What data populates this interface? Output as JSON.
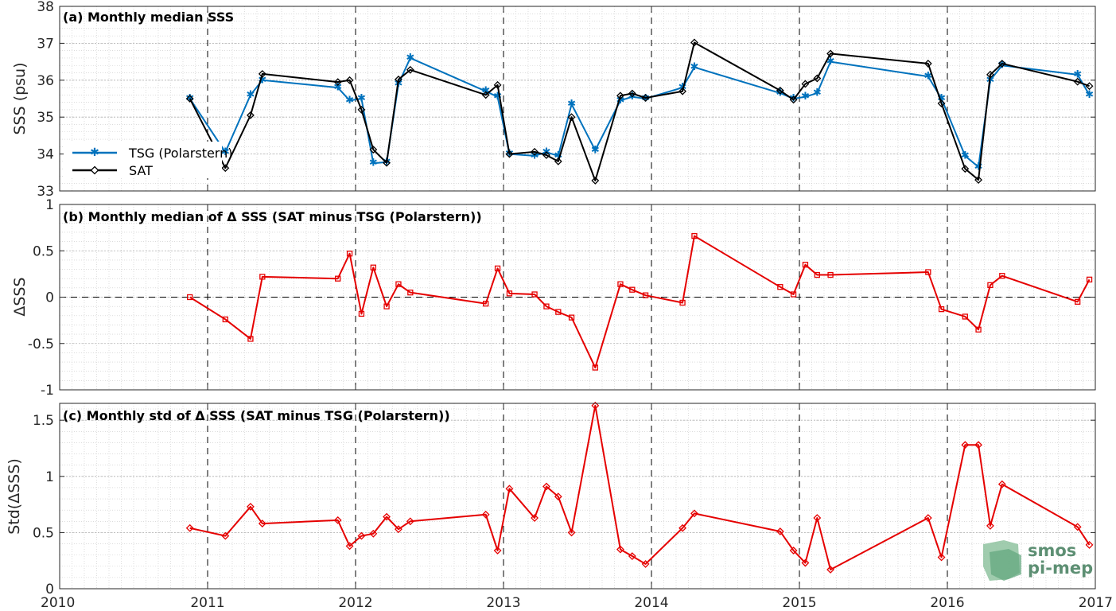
{
  "colors": {
    "tsg": "#0072bd",
    "sat": "#000000",
    "delta": "#e50000",
    "grid": "#c8c8c8",
    "axis": "#262626"
  },
  "logo": {
    "line1": "smos",
    "line2": "pi-mep"
  },
  "chart_data": [
    {
      "type": "line",
      "title": "(a) Monthly median SSS",
      "xlabel": "",
      "ylabel": "SSS (psu)",
      "xlim": [
        2010,
        2017
      ],
      "ylim": [
        33,
        38
      ],
      "xticks": [
        "2010",
        "2011",
        "2012",
        "2013",
        "2014",
        "2015",
        "2016",
        "2017"
      ],
      "yticks": [
        "33",
        "34",
        "35",
        "36",
        "37",
        "38"
      ],
      "grid": "on",
      "legend": "left",
      "series": [
        {
          "name": "TSG (Polarstern)",
          "marker": "star",
          "x": [
            2010.88,
            2011.12,
            2011.29,
            2011.37,
            2011.88,
            2011.96,
            2012.04,
            2012.12,
            2012.21,
            2012.29,
            2012.37,
            2012.88,
            2012.96,
            2013.04,
            2013.21,
            2013.29,
            2013.37,
            2013.46,
            2013.62,
            2013.79,
            2013.87,
            2013.96,
            2014.21,
            2014.29,
            2014.87,
            2014.96,
            2015.04,
            2015.12,
            2015.21,
            2015.87,
            2015.96,
            2016.12,
            2016.21,
            2016.29,
            2016.37,
            2016.88,
            2016.96
          ],
          "y": [
            35.5,
            34.05,
            35.6,
            36.0,
            35.8,
            35.45,
            35.5,
            33.75,
            33.78,
            35.9,
            36.6,
            35.7,
            35.55,
            34.0,
            33.95,
            34.05,
            33.95,
            35.35,
            34.1,
            35.45,
            35.55,
            35.5,
            35.8,
            36.35,
            35.65,
            35.5,
            35.55,
            35.65,
            36.5,
            36.1,
            35.5,
            33.95,
            33.65,
            36.0,
            36.4,
            36.15,
            35.6
          ]
        },
        {
          "name": "SAT",
          "marker": "diamond",
          "x": [
            2010.88,
            2011.12,
            2011.29,
            2011.37,
            2011.88,
            2011.96,
            2012.04,
            2012.12,
            2012.21,
            2012.29,
            2012.37,
            2012.88,
            2012.96,
            2013.04,
            2013.21,
            2013.29,
            2013.37,
            2013.46,
            2013.62,
            2013.79,
            2013.87,
            2013.96,
            2014.21,
            2014.29,
            2014.87,
            2014.96,
            2015.04,
            2015.12,
            2015.21,
            2015.87,
            2015.96,
            2016.12,
            2016.21,
            2016.29,
            2016.37,
            2016.88,
            2016.96
          ],
          "y": [
            35.5,
            33.62,
            35.05,
            36.17,
            35.95,
            36.0,
            35.2,
            34.12,
            33.76,
            36.02,
            36.28,
            35.6,
            35.87,
            34.0,
            34.06,
            33.97,
            33.8,
            35.0,
            33.28,
            35.58,
            35.64,
            35.52,
            35.7,
            37.02,
            35.72,
            35.47,
            35.9,
            36.05,
            36.72,
            36.45,
            35.37,
            33.6,
            33.3,
            36.15,
            36.45,
            35.96,
            35.84
          ]
        }
      ]
    },
    {
      "type": "line",
      "title": "(b) Monthly median of Δ SSS (SAT minus TSG (Polarstern))",
      "xlabel": "",
      "ylabel": "ΔSSS",
      "xlim": [
        2010,
        2017
      ],
      "ylim": [
        -1,
        1
      ],
      "xticks": [
        "2010",
        "2011",
        "2012",
        "2013",
        "2014",
        "2015",
        "2016",
        "2017"
      ],
      "yticks": [
        "-1",
        "-0.5",
        "0",
        "0.5",
        "1"
      ],
      "grid": "on",
      "zero_line": true,
      "series": [
        {
          "marker": "square",
          "x": [
            2010.88,
            2011.12,
            2011.29,
            2011.37,
            2011.88,
            2011.96,
            2012.04,
            2012.12,
            2012.21,
            2012.29,
            2012.37,
            2012.88,
            2012.96,
            2013.04,
            2013.21,
            2013.29,
            2013.37,
            2013.46,
            2013.62,
            2013.79,
            2013.87,
            2013.96,
            2014.21,
            2014.29,
            2014.87,
            2014.96,
            2015.04,
            2015.12,
            2015.21,
            2015.87,
            2015.96,
            2016.12,
            2016.21,
            2016.29,
            2016.37,
            2016.88,
            2016.96
          ],
          "y": [
            0.0,
            -0.24,
            -0.45,
            0.22,
            0.2,
            0.47,
            -0.18,
            0.32,
            -0.1,
            0.14,
            0.05,
            -0.07,
            0.31,
            0.04,
            0.03,
            -0.1,
            -0.16,
            -0.22,
            -0.76,
            0.14,
            0.08,
            0.02,
            -0.06,
            0.66,
            0.11,
            0.03,
            0.35,
            0.24,
            0.24,
            0.27,
            -0.13,
            -0.21,
            -0.35,
            0.13,
            0.23,
            -0.05,
            0.19
          ]
        }
      ]
    },
    {
      "type": "line",
      "title": "(c) Monthly std of Δ SSS (SAT minus TSG (Polarstern))",
      "xlabel": "",
      "ylabel": "Std(ΔSSS)",
      "xlim": [
        2010,
        2017
      ],
      "ylim": [
        0,
        1.65
      ],
      "xticks": [
        "2010",
        "2011",
        "2012",
        "2013",
        "2014",
        "2015",
        "2016",
        "2017"
      ],
      "yticks": [
        "0",
        "0.5",
        "1",
        "1.5"
      ],
      "grid": "on",
      "series": [
        {
          "marker": "diamond",
          "x": [
            2010.88,
            2011.12,
            2011.29,
            2011.37,
            2011.88,
            2011.96,
            2012.04,
            2012.12,
            2012.21,
            2012.29,
            2012.37,
            2012.88,
            2012.96,
            2013.04,
            2013.21,
            2013.29,
            2013.37,
            2013.46,
            2013.62,
            2013.79,
            2013.87,
            2013.96,
            2014.21,
            2014.29,
            2014.87,
            2014.96,
            2015.04,
            2015.12,
            2015.21,
            2015.87,
            2015.96,
            2016.12,
            2016.21,
            2016.29,
            2016.37,
            2016.88,
            2016.96
          ],
          "y": [
            0.54,
            0.47,
            0.73,
            0.58,
            0.61,
            0.38,
            0.47,
            0.49,
            0.64,
            0.53,
            0.6,
            0.66,
            0.34,
            0.89,
            0.63,
            0.91,
            0.82,
            0.5,
            1.63,
            0.35,
            0.29,
            0.22,
            0.54,
            0.67,
            0.51,
            0.34,
            0.23,
            0.63,
            0.17,
            0.63,
            0.28,
            1.28,
            1.28,
            0.56,
            0.93,
            0.55,
            0.39
          ]
        }
      ]
    }
  ]
}
